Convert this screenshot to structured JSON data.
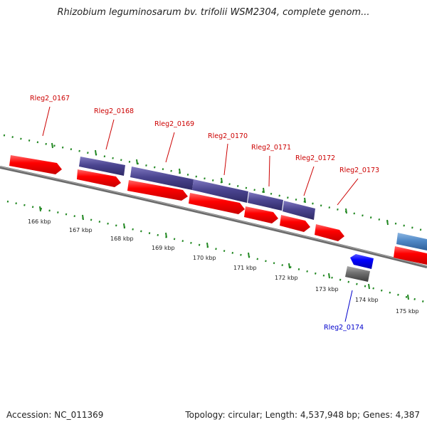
{
  "title": "Rhizobium leguminosarum bv. trifolii WSM2304, complete genom...",
  "footer": {
    "accession": "Accession: NC_011369",
    "summary": "Topology: circular; Length: 4,537,948 bp; Genes: 4,387"
  },
  "colors": {
    "forward_gene": "#ff0000",
    "reverse_gene": "#0000ff",
    "operon_block": "#4b4590",
    "other_block_blue": "#4f88c6",
    "gray_block": "#6e6e6e",
    "tick": "#228822",
    "backbone": "#808080",
    "label_forward": "#cc0000",
    "label_reverse": "#0000cc"
  },
  "scale_labels": [
    "166 kbp",
    "167 kbp",
    "168 kbp",
    "169 kbp",
    "170 kbp",
    "171 kbp",
    "172 kbp",
    "173 kbp",
    "174 kbp",
    "175 kbp"
  ],
  "gene_labels": [
    {
      "name": "Rleg2_0167",
      "strand": "forward"
    },
    {
      "name": "Rleg2_0168",
      "strand": "forward"
    },
    {
      "name": "Rleg2_0169",
      "strand": "forward"
    },
    {
      "name": "Rleg2_0170",
      "strand": "forward"
    },
    {
      "name": "Rleg2_0171",
      "strand": "forward"
    },
    {
      "name": "Rleg2_0172",
      "strand": "forward"
    },
    {
      "name": "Rleg2_0173",
      "strand": "forward"
    },
    {
      "name": "Rleg2_0174",
      "strand": "reverse"
    }
  ]
}
